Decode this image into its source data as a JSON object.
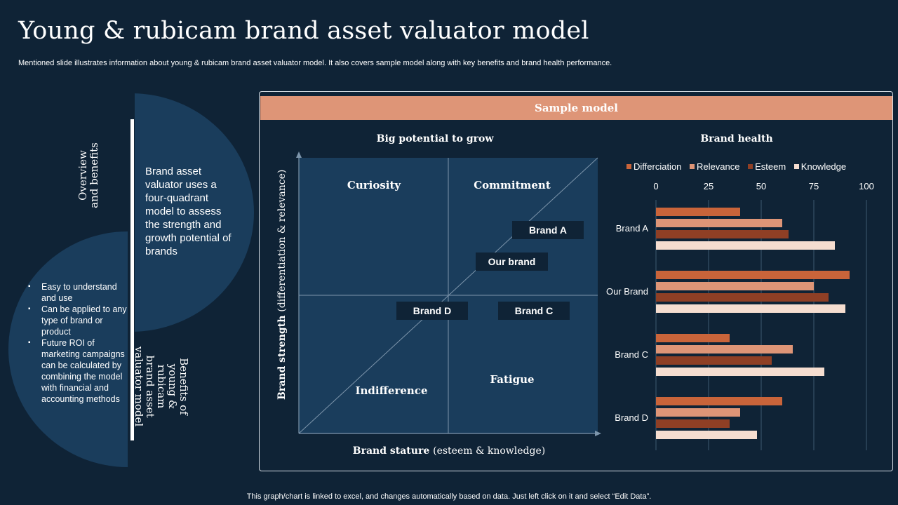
{
  "title": "Young & rubicam brand asset valuator model",
  "subtitle": "Mentioned slide illustrates information about young & rubicam brand asset valuator model. It also covers sample model along with key benefits and brand health performance.",
  "footer": "This graph/chart is linked to excel,  and changes automatically based on data. Just left click on it and select “Edit Data”.",
  "left": {
    "overview_label": "Overview\nand benefits",
    "overview_text": "Brand asset valuator uses a four-quadrant model to assess the strength and growth potential of brands",
    "benefits_label": "Benefits of\nyoung & rubicam\nbrand asset\nvaluator model",
    "benefits": [
      "Easy to understand and use",
      "Can be applied to any type of brand or product",
      "Future ROI of marketing campaigns can be calculated by combining the model with financial and accounting methods"
    ]
  },
  "panel": {
    "header": "Sample model",
    "quadrant": {
      "title": "Big potential to grow",
      "y_label_bold": "Brand strength",
      "y_label_light": "(differentiation & relevance)",
      "x_label_bold": "Brand stature",
      "x_label_light": "(esteem & knowledge)",
      "quadrants": {
        "top_left": "Curiosity",
        "top_right": "Commitment",
        "bottom_left": "Indifference",
        "bottom_right": "Fatigue"
      },
      "brands": {
        "a": "Brand A",
        "our": "Our brand",
        "d": "Brand D",
        "c": "Brand C"
      }
    }
  },
  "chart_data": {
    "type": "bar",
    "orientation": "horizontal",
    "title": "Brand health",
    "categories": [
      "Brand A",
      "Our Brand",
      "Brand C",
      "Brand D"
    ],
    "series": [
      {
        "name": "Differciation",
        "color": "#c9643a",
        "values": [
          40,
          92,
          35,
          60
        ]
      },
      {
        "name": "Relevance",
        "color": "#de9577",
        "values": [
          60,
          75,
          65,
          40
        ]
      },
      {
        "name": "Esteem",
        "color": "#8f3f25",
        "values": [
          63,
          82,
          55,
          35
        ]
      },
      {
        "name": "Knowledge",
        "color": "#f5ddd0",
        "values": [
          85,
          90,
          80,
          48
        ]
      }
    ],
    "xlim": [
      0,
      100
    ],
    "x_ticks": [
      "0",
      "25",
      "50",
      "75",
      "100"
    ],
    "xlabel": "",
    "ylabel": "",
    "grid": true,
    "legend": "top"
  }
}
